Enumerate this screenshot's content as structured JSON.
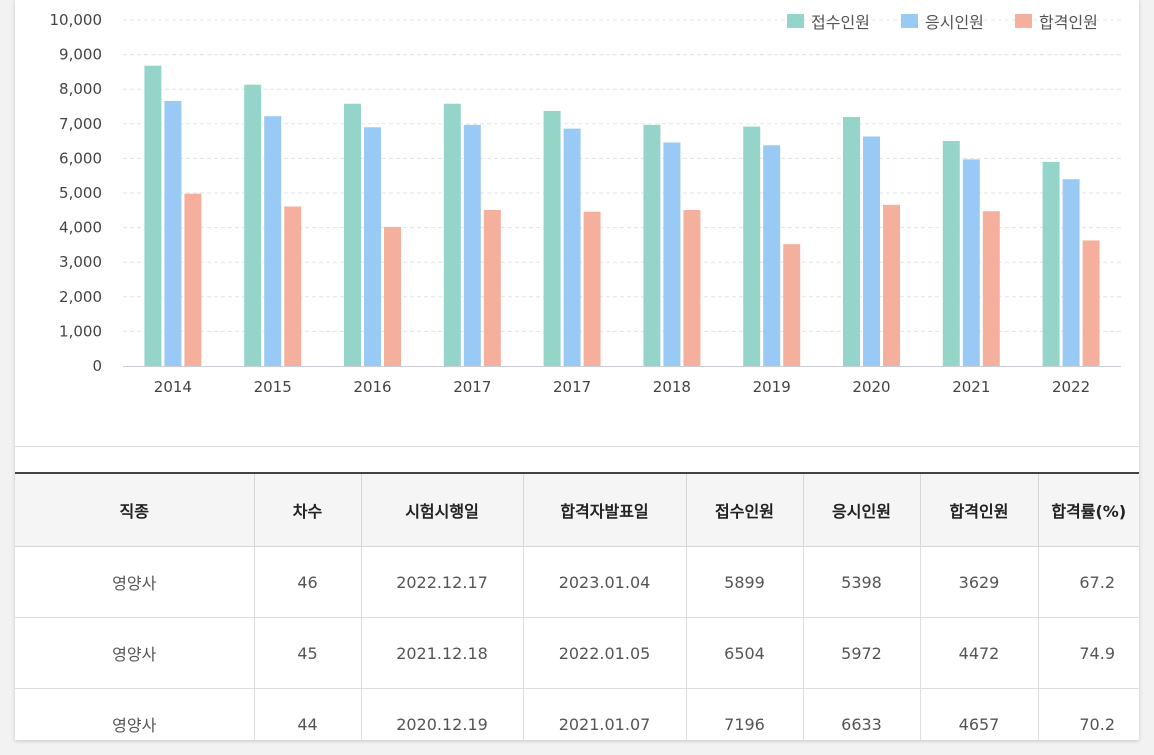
{
  "chart_data": {
    "type": "bar",
    "categories": [
      "2014",
      "2015",
      "2016",
      "2017",
      "2017",
      "2018",
      "2019",
      "2020",
      "2021",
      "2022"
    ],
    "series": [
      {
        "name": "접수인원",
        "color": "#95d5c9",
        "values": [
          8680,
          8130,
          7580,
          7580,
          7370,
          6970,
          6920,
          7196,
          6504,
          5899
        ]
      },
      {
        "name": "응시인원",
        "color": "#99c9f5",
        "values": [
          7660,
          7220,
          6900,
          6970,
          6860,
          6460,
          6380,
          6633,
          5972,
          5398
        ]
      },
      {
        "name": "합격인원",
        "color": "#f4b09d",
        "values": [
          4980,
          4610,
          4020,
          4510,
          4460,
          4510,
          3520,
          4657,
          4472,
          3629
        ]
      }
    ],
    "yticks": [
      "0",
      "1,000",
      "2,000",
      "3,000",
      "4,000",
      "5,000",
      "6,000",
      "7,000",
      "8,000",
      "9,000",
      "10,000"
    ],
    "ylim": [
      0,
      10000
    ],
    "grid": true,
    "legend": "top-right"
  },
  "table": {
    "headers": [
      "직종",
      "차수",
      "시험시행일",
      "합격자발표일",
      "접수인원",
      "응시인원",
      "합격인원",
      "합격률(%)"
    ],
    "rows": [
      [
        "영양사",
        "46",
        "2022.12.17",
        "2023.01.04",
        "5899",
        "5398",
        "3629",
        "67.2"
      ],
      [
        "영양사",
        "45",
        "2021.12.18",
        "2022.01.05",
        "6504",
        "5972",
        "4472",
        "74.9"
      ],
      [
        "영양사",
        "44",
        "2020.12.19",
        "2021.01.07",
        "7196",
        "6633",
        "4657",
        "70.2"
      ]
    ]
  }
}
